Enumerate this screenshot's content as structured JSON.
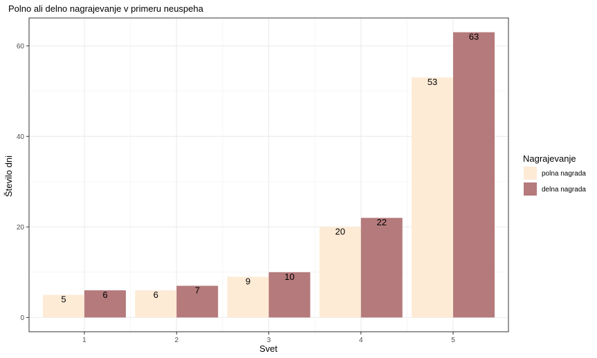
{
  "chart_data": {
    "type": "bar",
    "title": "Polno ali delno nagrajevanje v primeru neuspeha",
    "xlabel": "Svet",
    "ylabel": "Število dni",
    "categories": [
      "1",
      "2",
      "3",
      "4",
      "5"
    ],
    "series": [
      {
        "name": "polna nagrada",
        "values": [
          5,
          6,
          9,
          20,
          53
        ],
        "color": "#FDEBD6"
      },
      {
        "name": "delna nagrada",
        "values": [
          6,
          7,
          10,
          22,
          63
        ],
        "color": "#B57A7C"
      }
    ],
    "ylim": [
      -3.15,
      66.15
    ],
    "yticks": [
      0,
      20,
      40,
      60
    ],
    "grid": true,
    "legend": {
      "title": "Nagrajevanje",
      "position": "right"
    }
  }
}
